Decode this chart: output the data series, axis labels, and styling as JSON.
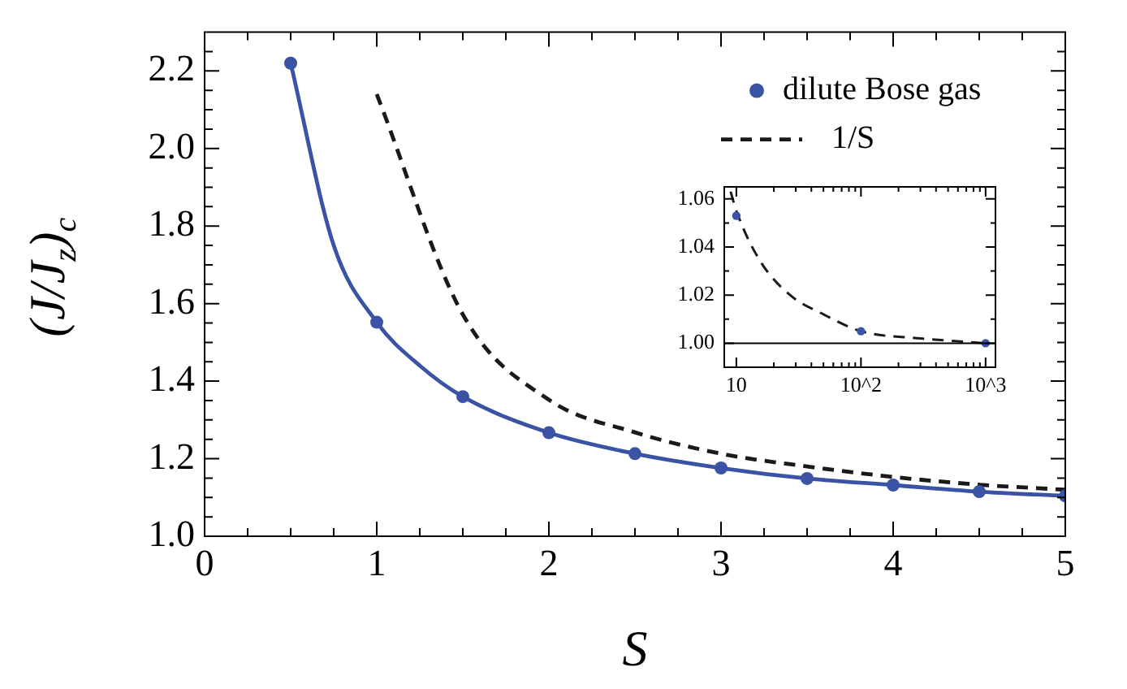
{
  "chart_data": [
    {
      "type": "scatter",
      "xlabel": "S",
      "ylabel": "(J/J$_{z}$)$_{c}$",
      "xlim": [
        0,
        5
      ],
      "ylim": [
        1.0,
        2.3
      ],
      "xticks": [
        0,
        {
          "value": 0.25,
          "label": null
        },
        {
          "value": 0.5,
          "label": null
        },
        {
          "value": 0.75,
          "label": null
        },
        1,
        {
          "value": 1.25,
          "label": null
        },
        {
          "value": 1.5,
          "label": null
        },
        {
          "value": 1.75,
          "label": null
        },
        2,
        {
          "value": 2.25,
          "label": null
        },
        {
          "value": 2.5,
          "label": null
        },
        {
          "value": 2.75,
          "label": null
        },
        3,
        {
          "value": 3.25,
          "label": null
        },
        {
          "value": 3.5,
          "label": null
        },
        {
          "value": 3.75,
          "label": null
        },
        4,
        {
          "value": 4.25,
          "label": null
        },
        {
          "value": 4.5,
          "label": null
        },
        {
          "value": 4.75,
          "label": null
        },
        5
      ],
      "yticks": [
        {
          "value": 1,
          "label": "1.0"
        },
        {
          "value": 1.05,
          "label": null
        },
        {
          "value": 1.1,
          "label": null
        },
        {
          "value": 1.15,
          "label": null
        },
        1.2,
        {
          "value": 1.25,
          "label": null
        },
        {
          "value": 1.3,
          "label": null
        },
        {
          "value": 1.35,
          "label": null
        },
        1.4,
        {
          "value": 1.45,
          "label": null
        },
        {
          "value": 1.5,
          "label": null
        },
        {
          "value": 1.55,
          "label": null
        },
        1.6,
        {
          "value": 1.65,
          "label": null
        },
        {
          "value": 1.7,
          "label": null
        },
        {
          "value": 1.75,
          "label": null
        },
        1.8,
        {
          "value": 1.85,
          "label": null
        },
        {
          "value": 1.9,
          "label": null
        },
        {
          "value": 1.95,
          "label": null
        },
        {
          "value": 2,
          "label": "2.0"
        },
        {
          "value": 2.05,
          "label": null
        },
        {
          "value": 2.1,
          "label": null
        },
        {
          "value": 2.15,
          "label": null
        },
        2.2,
        {
          "value": 2.25,
          "label": null
        }
      ],
      "grid": false,
      "legend": "top right",
      "series": [
        {
          "type": "scatter",
          "marker": "circle",
          "name": "dilute Bose gas",
          "color": "#3a53a4",
          "x": [
            0.5,
            1,
            1.5,
            2,
            2.5,
            3,
            3.5,
            4,
            4.5,
            5
          ],
          "values": [
            2.22,
            1.552,
            1.36,
            1.267,
            1.213,
            1.176,
            1.149,
            1.132,
            1.115,
            1.104
          ]
        },
        {
          "type": "line",
          "color": "#3a53a4",
          "line_style": "solid",
          "x": [
            0.5,
            0.75,
            1,
            1.25,
            1.5,
            2,
            2.5,
            3,
            3.5,
            4,
            4.5,
            5
          ],
          "values": [
            2.22,
            1.75,
            1.552,
            1.44,
            1.36,
            1.267,
            1.213,
            1.176,
            1.149,
            1.132,
            1.115,
            1.104
          ]
        },
        {
          "type": "line",
          "name": "1/S",
          "color": "#1a1a1a",
          "line_style": "dashed",
          "x": [
            1,
            1.5,
            2,
            2.5,
            3,
            3.5,
            4,
            4.5,
            5
          ],
          "values": [
            2.14,
            1.572,
            1.352,
            1.268,
            1.213,
            1.18,
            1.153,
            1.133,
            1.12
          ]
        }
      ]
    },
    {
      "type": "scatter",
      "xlim": [
        8,
        1200
      ],
      "ylim": [
        0.99,
        1.065
      ],
      "log": "x",
      "xticks": [
        10,
        {
          "value": 20,
          "label": null
        },
        {
          "value": 30,
          "label": null
        },
        {
          "value": 40,
          "label": null
        },
        {
          "value": 50,
          "label": null
        },
        {
          "value": 60,
          "label": null
        },
        {
          "value": 70,
          "label": null
        },
        {
          "value": 80,
          "label": null
        },
        {
          "value": 90,
          "label": null
        },
        {
          "value": 100,
          "label": "10^2"
        },
        {
          "value": 200,
          "label": null
        },
        {
          "value": 300,
          "label": null
        },
        {
          "value": 400,
          "label": null
        },
        {
          "value": 500,
          "label": null
        },
        {
          "value": 600,
          "label": null
        },
        {
          "value": 700,
          "label": null
        },
        {
          "value": 800,
          "label": null
        },
        {
          "value": 900,
          "label": null
        },
        {
          "value": 1000,
          "label": "10^3"
        }
      ],
      "yticks": [
        {
          "value": 1,
          "label": "1.00"
        },
        {
          "value": 1.01,
          "label": null
        },
        1.02,
        {
          "value": 1.03,
          "label": null
        },
        1.04,
        {
          "value": 1.05,
          "label": null
        },
        1.06
      ],
      "grid": false,
      "ref_lines": [
        {
          "axis": "y",
          "value": 1,
          "color": "#000000"
        }
      ],
      "series": [
        {
          "type": "scatter",
          "marker": "circle",
          "color": "#3a53a4",
          "x": [
            10,
            100,
            1000
          ],
          "values": [
            1.053,
            1.005,
            1.0
          ]
        },
        {
          "type": "line",
          "color": "#1a1a1a",
          "line_style": "dashed",
          "x": [
            9,
            10,
            15.6,
            27,
            50,
            100,
            300,
            1000
          ],
          "values": [
            1.063,
            1.055,
            1.034,
            1.02,
            1.012,
            1.005,
            1.002,
            1.0
          ]
        }
      ]
    }
  ]
}
